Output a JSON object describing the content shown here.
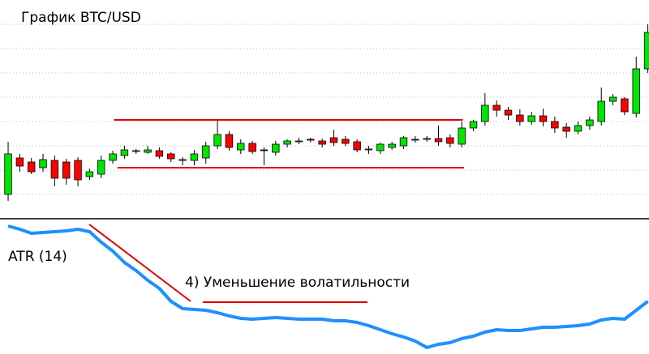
{
  "chart_data": [
    {
      "type": "candlestick",
      "title": "График BTC/USD",
      "categories": [
        null,
        null,
        null,
        null,
        null,
        null,
        null,
        null,
        null,
        null,
        null,
        null,
        null,
        null,
        null,
        null,
        null,
        null,
        null,
        null,
        null,
        null,
        null,
        null,
        null,
        null,
        null,
        null,
        null,
        null,
        null,
        null,
        null,
        null,
        null,
        null,
        null,
        null,
        null,
        null,
        null,
        null,
        null,
        null,
        null,
        null,
        null,
        null,
        null,
        null,
        null,
        null,
        null,
        null,
        null,
        null
      ],
      "open": [
        30,
        75,
        70,
        63,
        72,
        70,
        72,
        52,
        55,
        72,
        78,
        83,
        82,
        84,
        80,
        72,
        72,
        75,
        90,
        104,
        85,
        93,
        85,
        82,
        92,
        95,
        98,
        96,
        100,
        98,
        95,
        86,
        84,
        88,
        90,
        98,
        98,
        99,
        100,
        92,
        112,
        120,
        140,
        134,
        128,
        120,
        127,
        120,
        113,
        108,
        115,
        120,
        145,
        148,
        130,
        185
      ],
      "high": [
        95,
        80,
        75,
        80,
        78,
        74,
        76,
        62,
        78,
        84,
        90,
        86,
        90,
        88,
        82,
        76,
        85,
        95,
        122,
        108,
        98,
        96,
        88,
        96,
        98,
        100,
        100,
        99,
        110,
        102,
        98,
        90,
        94,
        95,
        102,
        102,
        102,
        115,
        104,
        120,
        122,
        155,
        146,
        138,
        135,
        132,
        136,
        126,
        118,
        120,
        126,
        162,
        154,
        150,
        200,
        240
      ],
      "low": [
        22,
        58,
        55,
        58,
        40,
        42,
        40,
        48,
        50,
        68,
        74,
        80,
        80,
        74,
        70,
        66,
        66,
        68,
        86,
        84,
        80,
        80,
        66,
        78,
        88,
        92,
        94,
        88,
        90,
        90,
        82,
        80,
        80,
        85,
        86,
        94,
        95,
        90,
        88,
        88,
        108,
        115,
        126,
        122,
        115,
        116,
        114,
        106,
        100,
        104,
        110,
        115,
        140,
        128,
        125,
        180
      ],
      "close": [
        80,
        65,
        58,
        73,
        50,
        50,
        48,
        58,
        72,
        80,
        85,
        84,
        85,
        77,
        74,
        73,
        80,
        90,
        104,
        88,
        93,
        83,
        84,
        92,
        96,
        96,
        97,
        92,
        94,
        93,
        85,
        86,
        92,
        92,
        100,
        98,
        99,
        95,
        93,
        112,
        120,
        140,
        134,
        128,
        120,
        127,
        120,
        112,
        108,
        115,
        122,
        145,
        150,
        132,
        185,
        230
      ],
      "up_color": "#00e600",
      "down_color": "#ff0000",
      "xlim": [
        -0.7,
        55.1
      ],
      "ylim": [
        0,
        270
      ],
      "grid": true,
      "hlines": [
        {
          "value": 122,
          "x": [
            9.1,
            39.1
          ],
          "color": "#e00000"
        },
        {
          "value": 63,
          "x": [
            9.4,
            39.2
          ],
          "color": "#e00000"
        }
      ]
    },
    {
      "type": "line",
      "title": "ATR (14)",
      "annotation": "4) Уменьшение волатильности",
      "categories": [
        null,
        null,
        null,
        null,
        null,
        null,
        null,
        null,
        null,
        null,
        null,
        null,
        null,
        null,
        null,
        null,
        null,
        null,
        null,
        null,
        null,
        null,
        null,
        null,
        null,
        null,
        null,
        null,
        null,
        null,
        null,
        null,
        null,
        null,
        null,
        null,
        null,
        null,
        null,
        null,
        null,
        null,
        null,
        null,
        null,
        null,
        null,
        null,
        null,
        null,
        null,
        null,
        null,
        null,
        null,
        null
      ],
      "values": [
        158,
        154,
        149,
        150,
        151,
        152,
        154,
        151,
        138,
        127,
        113,
        103,
        91,
        81,
        65,
        56,
        55,
        54,
        51,
        47,
        44,
        43,
        44,
        45,
        44,
        43,
        43,
        43,
        41,
        41,
        39,
        35,
        30,
        25,
        21,
        16,
        8,
        12,
        14,
        19,
        22,
        27,
        30,
        29,
        29,
        31,
        33,
        33,
        34,
        35,
        37,
        42,
        44,
        43,
        54,
        65
      ],
      "color": "#1e90ff",
      "xlim": [
        -0.7,
        55.1
      ],
      "ylim": [
        0,
        165
      ]
    }
  ]
}
